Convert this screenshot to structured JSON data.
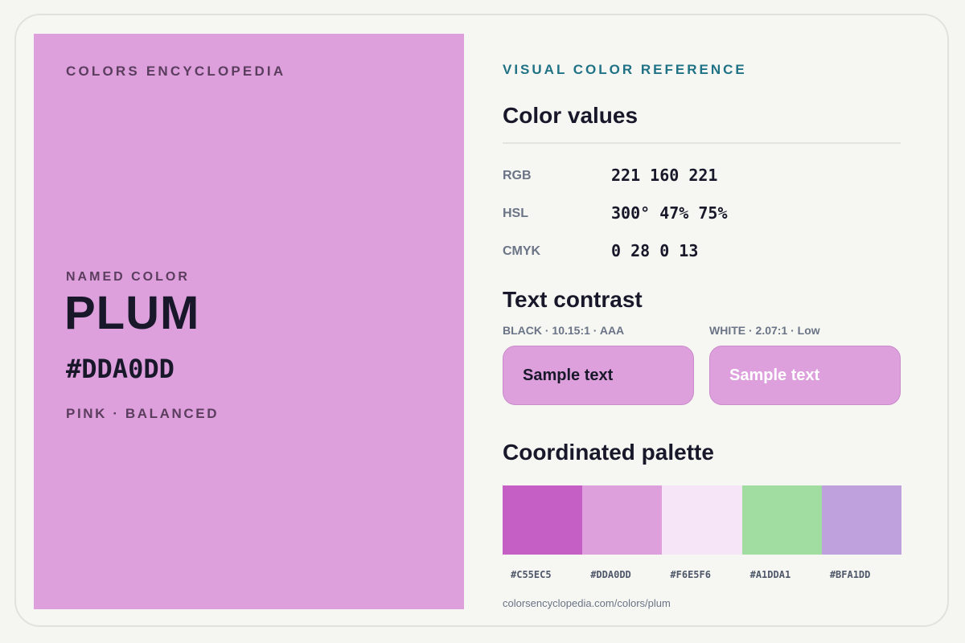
{
  "brand": "COLORS ENCYCLOPEDIA",
  "swatch": {
    "hex_color": "#DDA0DD",
    "label": "NAMED COLOR",
    "name": "PLUM",
    "hex": "#DDA0DD",
    "tags": "PINK · BALANCED"
  },
  "reference": {
    "eyebrow": "VISUAL COLOR REFERENCE",
    "values_title": "Color values",
    "values": [
      {
        "label": "RGB",
        "value": "221 160 221"
      },
      {
        "label": "HSL",
        "value": "300° 47% 75%"
      },
      {
        "label": "CMYK",
        "value": "0 28 0 13"
      }
    ]
  },
  "contrast": {
    "title": "Text contrast",
    "black": {
      "caption": "BLACK · 10.15:1 · AAA",
      "sample": "Sample text",
      "text_color": "#18182a"
    },
    "white": {
      "caption": "WHITE · 2.07:1 · Low",
      "sample": "Sample text",
      "text_color": "#ffffff"
    }
  },
  "palette": {
    "title": "Coordinated palette",
    "swatches": [
      {
        "label": "#C55EC5",
        "color": "#C55EC5"
      },
      {
        "label": "#DDA0DD",
        "color": "#DDA0DD"
      },
      {
        "label": "#F6E5F6",
        "color": "#F6E5F6"
      },
      {
        "label": "#A1DDA1",
        "color": "#A1DDA1"
      },
      {
        "label": "#BFA1DD",
        "color": "#BFA1DD"
      }
    ]
  },
  "footer": {
    "url": "colorsencyclopedia.com/colors/plum"
  }
}
